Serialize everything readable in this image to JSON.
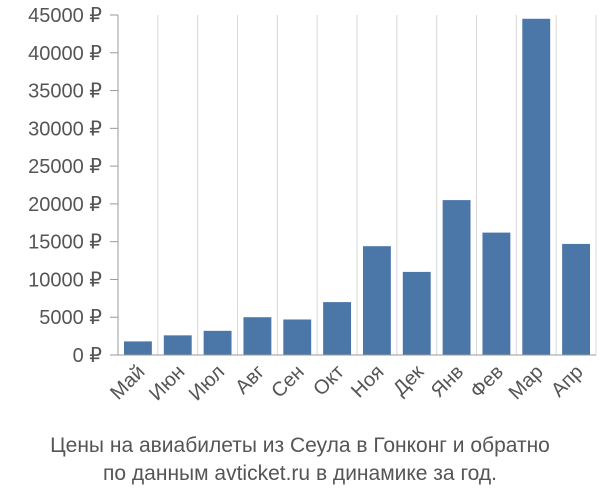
{
  "chart_data": {
    "type": "bar",
    "categories": [
      "Май",
      "Июн",
      "Июл",
      "Авг",
      "Сен",
      "Окт",
      "Ноя",
      "Дек",
      "Янв",
      "Фев",
      "Мар",
      "Апр"
    ],
    "values": [
      1800,
      2600,
      3200,
      5000,
      4700,
      7000,
      14400,
      11000,
      20500,
      16200,
      44500,
      14700
    ],
    "ylim": [
      0,
      45000
    ],
    "yticks": [
      0,
      5000,
      10000,
      15000,
      20000,
      25000,
      30000,
      35000,
      40000,
      45000
    ],
    "ytick_labels": [
      "0 ₽",
      "5000 ₽",
      "10000 ₽",
      "15000 ₽",
      "20000 ₽",
      "25000 ₽",
      "30000 ₽",
      "35000 ₽",
      "40000 ₽",
      "45000 ₽"
    ],
    "grid": "vertical",
    "bar_color": "#4a76a8",
    "grid_color": "#d8d8d8",
    "axis_color": "#999999"
  },
  "caption": {
    "line1": "Цены на авиабилеты из Сеула в Гонконг и обратно",
    "line2": "по данным avticket.ru в динамике за год."
  }
}
